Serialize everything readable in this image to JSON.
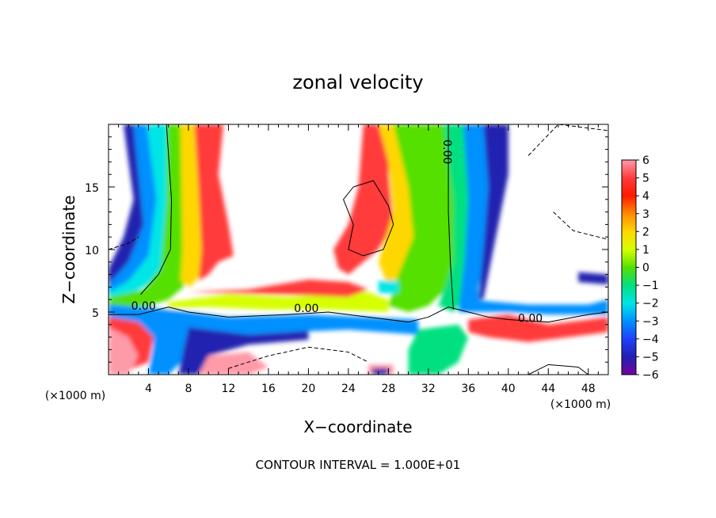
{
  "chart_data": {
    "type": "heatmap",
    "title": "zonal velocity",
    "xlabel": "X−coordinate",
    "ylabel": "Z−coordinate",
    "x_unit_left": "(×1000 m)",
    "x_unit_right": "(×1000 m)",
    "footer": "CONTOUR INTERVAL = 1.000E+01",
    "xlim": [
      0,
      50
    ],
    "ylim": [
      0,
      20
    ],
    "x_ticks": [
      4,
      8,
      12,
      16,
      20,
      24,
      28,
      32,
      36,
      40,
      44,
      48
    ],
    "x_tick_labels": [
      "4",
      "8",
      "12",
      "16",
      "20",
      "24",
      "28",
      "32",
      "36",
      "40",
      "44",
      "48"
    ],
    "y_ticks": [
      5,
      10,
      15
    ],
    "y_tick_labels": [
      "5",
      "10",
      "15"
    ],
    "colorbar": {
      "levels": [
        6,
        5,
        4,
        3,
        2,
        1,
        0,
        -1,
        -2,
        -3,
        -4,
        -5,
        -6
      ],
      "labels": [
        "6",
        "5",
        "4",
        "3",
        "2",
        "1",
        "0",
        "−1",
        "−2",
        "−3",
        "−4",
        "−5",
        "−6"
      ],
      "colors": [
        "#ff9aa8",
        "#ff3b3b",
        "#ff1a00",
        "#ff8c00",
        "#ffd700",
        "#d6ff00",
        "#55e000",
        "#00e080",
        "#00e6e6",
        "#0090ff",
        "#2040ff",
        "#2020b0",
        "#7a00a0"
      ]
    },
    "contour_labels": [
      {
        "text": "0.00",
        "x": 3.5,
        "y": 5.2
      },
      {
        "text": "0.00",
        "x": 19.8,
        "y": 5.0
      },
      {
        "text": "0.00",
        "x": 42.2,
        "y": 4.2
      },
      {
        "text": "0.00",
        "x": 33.5,
        "y": 17.8
      }
    ]
  }
}
